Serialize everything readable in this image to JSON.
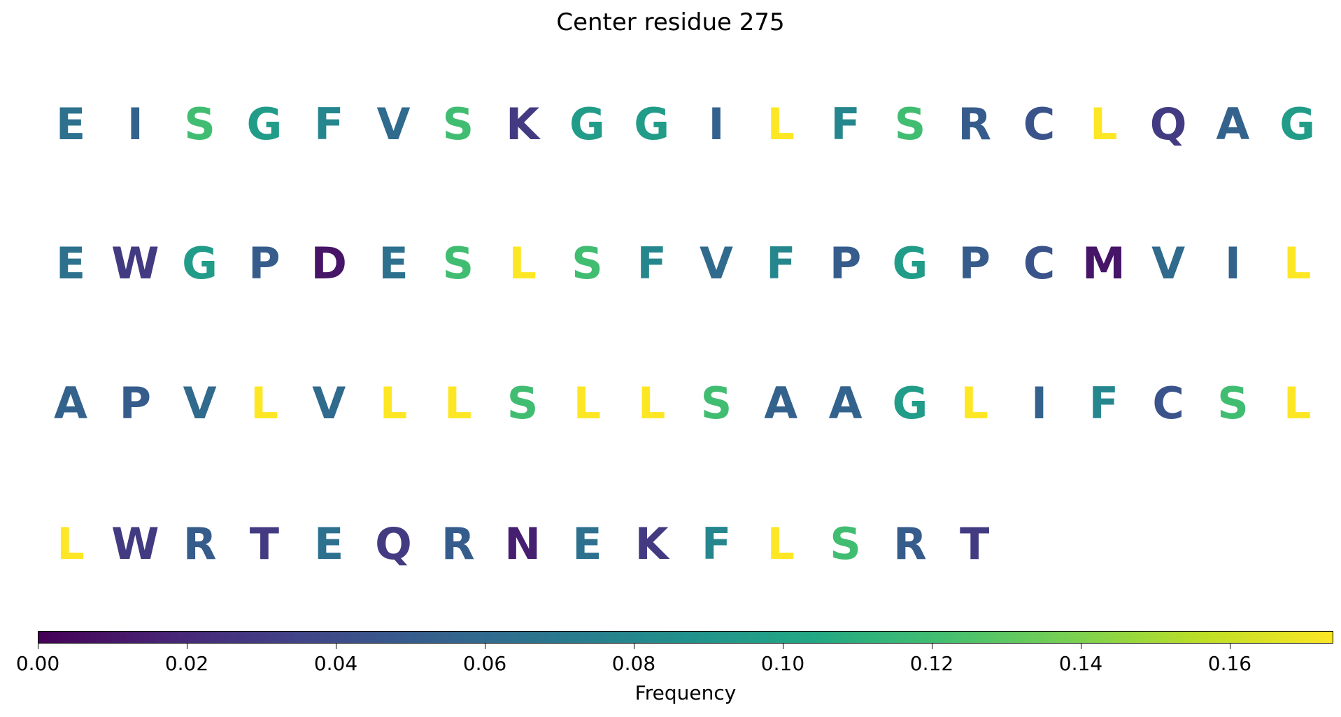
{
  "chart_data": {
    "type": "sequence_logo",
    "title": "Center residue 275",
    "colorbar": {
      "label": "Frequency",
      "colormap": "viridis",
      "range": [
        0,
        0.1739
      ],
      "ticks": [
        "0.00",
        "0.02",
        "0.04",
        "0.06",
        "0.08",
        "0.10",
        "0.12",
        "0.14",
        "0.16"
      ]
    },
    "residues": [
      {
        "aa": "E",
        "freq": 0.065
      },
      {
        "aa": "I",
        "freq": 0.055
      },
      {
        "aa": "S",
        "freq": 0.12
      },
      {
        "aa": "G",
        "freq": 0.095
      },
      {
        "aa": "F",
        "freq": 0.08
      },
      {
        "aa": "V",
        "freq": 0.06
      },
      {
        "aa": "S",
        "freq": 0.12
      },
      {
        "aa": "K",
        "freq": 0.03
      },
      {
        "aa": "G",
        "freq": 0.095
      },
      {
        "aa": "G",
        "freq": 0.095
      },
      {
        "aa": "I",
        "freq": 0.055
      },
      {
        "aa": "L",
        "freq": 0.174
      },
      {
        "aa": "F",
        "freq": 0.08
      },
      {
        "aa": "S",
        "freq": 0.12
      },
      {
        "aa": "R",
        "freq": 0.05
      },
      {
        "aa": "C",
        "freq": 0.045
      },
      {
        "aa": "L",
        "freq": 0.174
      },
      {
        "aa": "Q",
        "freq": 0.03
      },
      {
        "aa": "A",
        "freq": 0.055
      },
      {
        "aa": "G",
        "freq": 0.095
      },
      {
        "aa": "E",
        "freq": 0.065
      },
      {
        "aa": "W",
        "freq": 0.03
      },
      {
        "aa": "G",
        "freq": 0.095
      },
      {
        "aa": "P",
        "freq": 0.05
      },
      {
        "aa": "D",
        "freq": 0.01
      },
      {
        "aa": "E",
        "freq": 0.065
      },
      {
        "aa": "S",
        "freq": 0.12
      },
      {
        "aa": "L",
        "freq": 0.174
      },
      {
        "aa": "S",
        "freq": 0.12
      },
      {
        "aa": "F",
        "freq": 0.08
      },
      {
        "aa": "V",
        "freq": 0.06
      },
      {
        "aa": "F",
        "freq": 0.08
      },
      {
        "aa": "P",
        "freq": 0.05
      },
      {
        "aa": "G",
        "freq": 0.095
      },
      {
        "aa": "P",
        "freq": 0.05
      },
      {
        "aa": "C",
        "freq": 0.045
      },
      {
        "aa": "M",
        "freq": 0.01
      },
      {
        "aa": "V",
        "freq": 0.06
      },
      {
        "aa": "I",
        "freq": 0.055
      },
      {
        "aa": "L",
        "freq": 0.174
      },
      {
        "aa": "A",
        "freq": 0.055
      },
      {
        "aa": "P",
        "freq": 0.05
      },
      {
        "aa": "V",
        "freq": 0.06
      },
      {
        "aa": "L",
        "freq": 0.174
      },
      {
        "aa": "V",
        "freq": 0.06
      },
      {
        "aa": "L",
        "freq": 0.174
      },
      {
        "aa": "L",
        "freq": 0.174
      },
      {
        "aa": "S",
        "freq": 0.12
      },
      {
        "aa": "L",
        "freq": 0.174
      },
      {
        "aa": "L",
        "freq": 0.174
      },
      {
        "aa": "S",
        "freq": 0.12
      },
      {
        "aa": "A",
        "freq": 0.055
      },
      {
        "aa": "A",
        "freq": 0.055
      },
      {
        "aa": "G",
        "freq": 0.095
      },
      {
        "aa": "L",
        "freq": 0.174
      },
      {
        "aa": "I",
        "freq": 0.055
      },
      {
        "aa": "F",
        "freq": 0.08
      },
      {
        "aa": "C",
        "freq": 0.045
      },
      {
        "aa": "S",
        "freq": 0.12
      },
      {
        "aa": "L",
        "freq": 0.174
      },
      {
        "aa": "L",
        "freq": 0.174
      },
      {
        "aa": "W",
        "freq": 0.03
      },
      {
        "aa": "R",
        "freq": 0.05
      },
      {
        "aa": "T",
        "freq": 0.03
      },
      {
        "aa": "E",
        "freq": 0.065
      },
      {
        "aa": "Q",
        "freq": 0.03
      },
      {
        "aa": "R",
        "freq": 0.05
      },
      {
        "aa": "N",
        "freq": 0.015
      },
      {
        "aa": "E",
        "freq": 0.065
      },
      {
        "aa": "K",
        "freq": 0.03
      },
      {
        "aa": "F",
        "freq": 0.08
      },
      {
        "aa": "L",
        "freq": 0.174
      },
      {
        "aa": "S",
        "freq": 0.12
      },
      {
        "aa": "R",
        "freq": 0.05
      },
      {
        "aa": "T",
        "freq": 0.03
      }
    ]
  }
}
